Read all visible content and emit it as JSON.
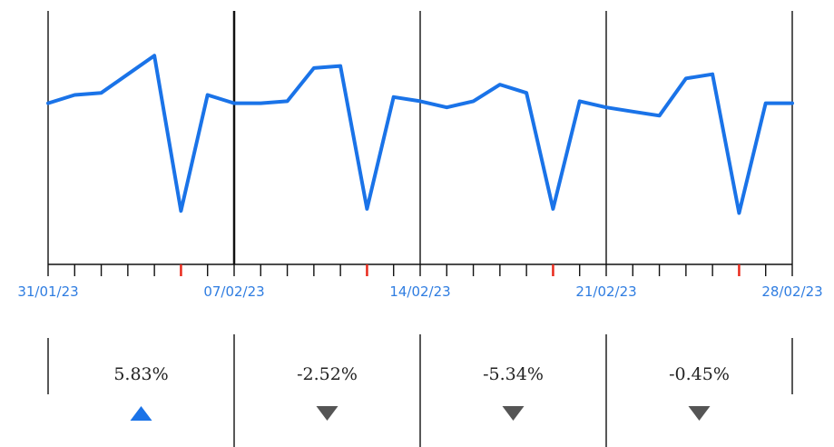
{
  "chart_data": {
    "type": "line",
    "x_labels": [
      "31/01/23",
      "07/02/23",
      "14/02/23",
      "21/02/23",
      "28/02/23"
    ],
    "series": [
      {
        "values": [
          62,
          66,
          67,
          76,
          85,
          10,
          66,
          62,
          62,
          63,
          79,
          80,
          11,
          65,
          63,
          60,
          63,
          71,
          67,
          11,
          63,
          60,
          58,
          56,
          74,
          76,
          9,
          62,
          62
        ]
      }
    ],
    "ylim": [
      0,
      100
    ],
    "weekly_change": [
      {
        "label": "5.83%",
        "value": 5.83,
        "direction": "up"
      },
      {
        "label": "-2.52%",
        "value": -2.52,
        "direction": "down"
      },
      {
        "label": "-5.34%",
        "value": -5.34,
        "direction": "down"
      },
      {
        "label": "-0.45%",
        "value": -0.45,
        "direction": "down"
      }
    ],
    "highlighted_day_index": [
      5,
      12,
      19,
      26
    ],
    "colors": {
      "line": "#1a73e8",
      "tick_label": "#2f7de1",
      "highlight_tick": "#e8291c",
      "up_arrow": "#1a73e8",
      "down_arrow": "#555555"
    },
    "grid": false
  }
}
